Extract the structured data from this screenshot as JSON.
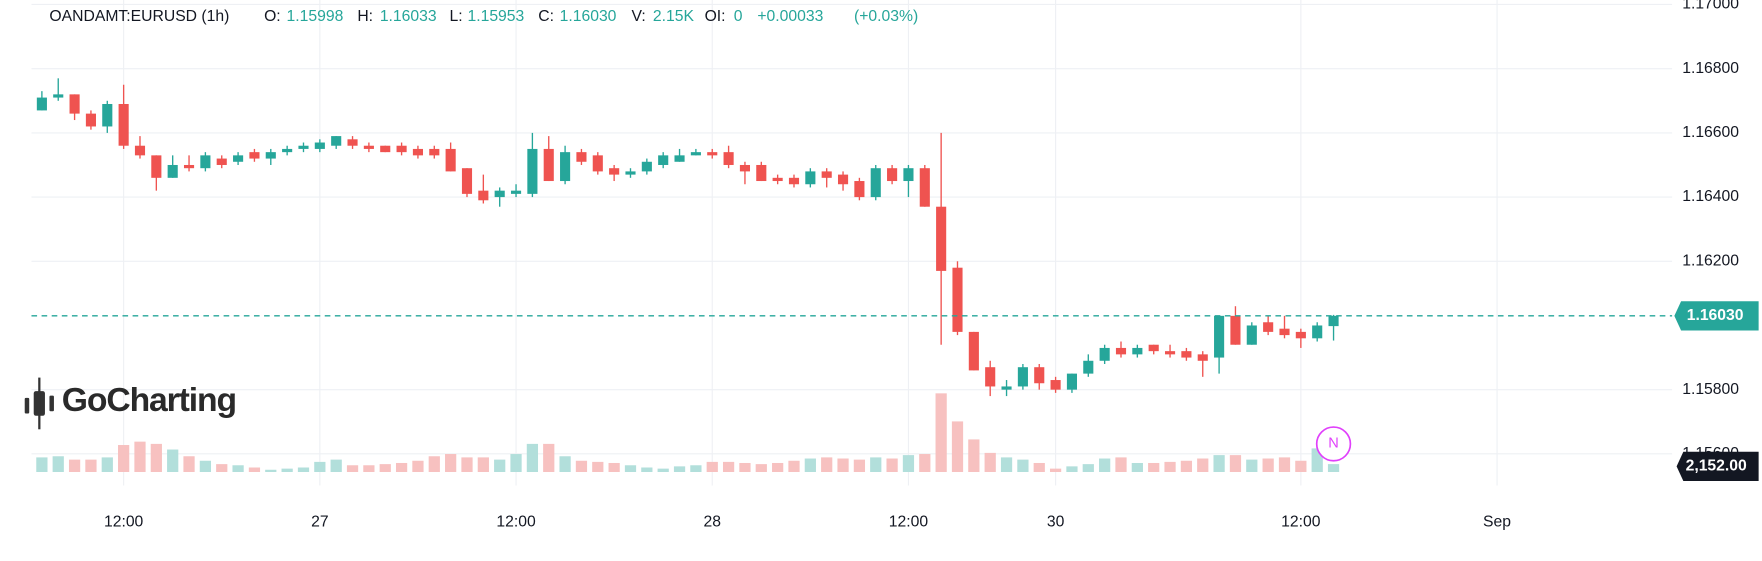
{
  "chart_data": {
    "type": "candlestick",
    "legend": {
      "symbol": "OANDAMT:EURUSD (1h)",
      "field_labels": [
        "O:",
        "H:",
        "L:",
        "C:",
        "V:",
        "OI:"
      ],
      "ohlc_values": [
        "1.15998",
        "1.16033",
        "1.15953",
        "1.16030"
      ],
      "volume": "2.15K",
      "open_interest": 0,
      "change": "+0.00033",
      "change_pct": "(+0.03%)"
    },
    "watermark": "GoCharting",
    "event_marker": "N",
    "price_badge_label": "1.16030",
    "volume_badge_label": "2,152.00",
    "up_color": "#26a69a",
    "down_color": "#ef5350",
    "volume_up_color": "#b2dfdb",
    "volume_down_color": "#f7c1c0",
    "grid": true,
    "categories": [
      null,
      null,
      null,
      null,
      null,
      "12:00",
      null,
      null,
      null,
      null,
      null,
      null,
      null,
      null,
      null,
      null,
      null,
      "27",
      null,
      null,
      null,
      null,
      null,
      null,
      null,
      null,
      null,
      null,
      null,
      "12:00",
      null,
      null,
      null,
      null,
      null,
      null,
      null,
      null,
      null,
      null,
      null,
      "28",
      null,
      null,
      null,
      null,
      null,
      null,
      null,
      null,
      null,
      null,
      null,
      "12:00",
      null,
      null,
      null,
      null,
      null,
      null,
      null,
      null,
      "30",
      null,
      null,
      null,
      null,
      null,
      null,
      null,
      null,
      null,
      null,
      null,
      null,
      null,
      null,
      "12:00",
      null,
      null,
      null,
      null,
      null,
      null,
      null,
      null,
      null,
      null,
      null,
      "Sep"
    ],
    "open": [
      1.1667,
      1.1671,
      1.1672,
      1.1666,
      1.1662,
      1.1669,
      1.1656,
      1.1653,
      1.1646,
      1.165,
      1.1649,
      1.1652,
      1.1651,
      1.1654,
      1.1652,
      1.1654,
      1.1655,
      1.1655,
      1.1656,
      1.1658,
      1.1656,
      1.1656,
      1.1656,
      1.1655,
      1.1655,
      1.1655,
      1.1649,
      1.1642,
      1.164,
      1.1641,
      1.1641,
      1.1655,
      1.1645,
      1.1654,
      1.1653,
      1.1649,
      1.1647,
      1.1648,
      1.165,
      1.1651,
      1.1653,
      1.1654,
      1.1654,
      1.165,
      1.165,
      1.1646,
      1.1646,
      1.1644,
      1.1648,
      1.1647,
      1.1645,
      1.164,
      1.1649,
      1.1645,
      1.1649,
      1.1637,
      1.1618,
      1.1598,
      1.1587,
      1.158,
      1.1581,
      1.1587,
      1.1583,
      1.158,
      1.1585,
      1.1589,
      1.1593,
      1.1591,
      1.1594,
      1.1592,
      1.1592,
      1.1591,
      1.159,
      1.1603,
      1.1594,
      1.1601,
      1.1599,
      1.1598,
      1.1596,
      1.15998,
      null,
      null,
      null,
      null,
      null,
      null,
      null,
      null,
      null,
      null
    ],
    "high": [
      1.1673,
      1.1677,
      1.1672,
      1.1667,
      1.167,
      1.1675,
      1.1659,
      1.1653,
      1.1653,
      1.1653,
      1.1654,
      1.1653,
      1.1654,
      1.1655,
      1.1655,
      1.1656,
      1.1657,
      1.1658,
      1.1659,
      1.1659,
      1.1657,
      1.1656,
      1.1657,
      1.1656,
      1.1656,
      1.1657,
      1.1649,
      1.1647,
      1.1643,
      1.1644,
      1.166,
      1.1659,
      1.1656,
      1.1655,
      1.1654,
      1.165,
      1.1649,
      1.1652,
      1.1654,
      1.1655,
      1.1655,
      1.1655,
      1.1656,
      1.1651,
      1.1651,
      1.1647,
      1.1647,
      1.1649,
      1.1649,
      1.1648,
      1.1646,
      1.165,
      1.165,
      1.165,
      1.165,
      1.166,
      1.162,
      1.1598,
      1.1589,
      1.1583,
      1.1588,
      1.1588,
      1.1584,
      1.1585,
      1.1591,
      1.1594,
      1.1595,
      1.1594,
      1.1594,
      1.1594,
      1.1593,
      1.1592,
      1.1603,
      1.1606,
      1.1601,
      1.1603,
      1.1603,
      1.1599,
      1.1601,
      1.16033,
      null,
      null,
      null,
      null,
      null,
      null,
      null,
      null,
      null,
      null
    ],
    "low": [
      1.1667,
      1.167,
      1.1664,
      1.1661,
      1.166,
      1.1655,
      1.1652,
      1.1642,
      1.1646,
      1.1648,
      1.1648,
      1.1649,
      1.165,
      1.1651,
      1.165,
      1.1653,
      1.1654,
      1.1654,
      1.1655,
      1.1655,
      1.1654,
      1.1654,
      1.1653,
      1.1652,
      1.1652,
      1.1648,
      1.164,
      1.1638,
      1.1637,
      1.164,
      1.164,
      1.1645,
      1.1644,
      1.165,
      1.1647,
      1.1645,
      1.1646,
      1.1647,
      1.1649,
      1.1651,
      1.1653,
      1.1652,
      1.1649,
      1.1644,
      1.1645,
      1.1644,
      1.1643,
      1.1643,
      1.1643,
      1.1642,
      1.1639,
      1.1639,
      1.1644,
      1.164,
      1.1637,
      1.1594,
      1.1597,
      1.1586,
      1.1578,
      1.1578,
      1.158,
      1.158,
      1.1579,
      1.1579,
      1.1584,
      1.1588,
      1.159,
      1.159,
      1.1591,
      1.159,
      1.1589,
      1.1584,
      1.1585,
      1.1594,
      1.1594,
      1.1597,
      1.1596,
      1.1593,
      1.1595,
      1.15953,
      null,
      null,
      null,
      null,
      null,
      null,
      null,
      null,
      null,
      null
    ],
    "close": [
      1.1671,
      1.1672,
      1.1666,
      1.1662,
      1.1669,
      1.1656,
      1.1653,
      1.1646,
      1.165,
      1.1649,
      1.1653,
      1.165,
      1.1653,
      1.1652,
      1.1654,
      1.1655,
      1.1656,
      1.1657,
      1.1659,
      1.1656,
      1.1655,
      1.1654,
      1.1654,
      1.1653,
      1.1653,
      1.1648,
      1.1641,
      1.1639,
      1.1642,
      1.1642,
      1.1655,
      1.1645,
      1.1654,
      1.1651,
      1.1648,
      1.1647,
      1.1648,
      1.1651,
      1.1653,
      1.1653,
      1.1654,
      1.1653,
      1.165,
      1.1648,
      1.1645,
      1.1645,
      1.1644,
      1.1648,
      1.1646,
      1.1644,
      1.164,
      1.1649,
      1.1645,
      1.1649,
      1.1637,
      1.1617,
      1.1598,
      1.1586,
      1.1581,
      1.1581,
      1.1587,
      1.1582,
      1.158,
      1.1585,
      1.1589,
      1.1593,
      1.1591,
      1.1593,
      1.1592,
      1.1591,
      1.159,
      1.1589,
      1.1603,
      1.1594,
      1.16,
      1.1598,
      1.1597,
      1.1596,
      1.16,
      1.1603,
      null,
      null,
      null,
      null,
      null,
      null,
      null,
      null,
      null,
      null
    ],
    "volumes": [
      3990,
      4300,
      3380,
      3380,
      3990,
      7370,
      8290,
      7680,
      6140,
      4300,
      3070,
      2150,
      1840,
      1230,
      610,
      920,
      1230,
      2760,
      3380,
      1840,
      1840,
      2150,
      2460,
      3070,
      4300,
      4910,
      3990,
      3990,
      3380,
      4910,
      7680,
      7680,
      4300,
      3070,
      2760,
      2460,
      1840,
      1230,
      920,
      1540,
      1840,
      2760,
      2760,
      2460,
      2150,
      2460,
      3070,
      3680,
      3990,
      3680,
      3380,
      3990,
      3680,
      4610,
      4910,
      21490,
      13820,
      8900,
      5220,
      3990,
      3380,
      2460,
      920,
      1540,
      2150,
      3680,
      3990,
      2460,
      2460,
      2760,
      3070,
      3680,
      4610,
      4610,
      3380,
      3680,
      3990,
      3070,
      6450,
      2152,
      null,
      null,
      null,
      null,
      null,
      null,
      null,
      null,
      null,
      null
    ],
    "ylim": [
      1.15526,
      1.17014
    ],
    "yticks": [
      {
        "value": 1.156,
        "label": "1.15600"
      },
      {
        "value": 1.158,
        "label": "1.15800"
      },
      {
        "value": 1.162,
        "label": "1.16200"
      },
      {
        "value": 1.164,
        "label": "1.16400"
      },
      {
        "value": 1.166,
        "label": "1.16600"
      },
      {
        "value": 1.168,
        "label": "1.16800"
      },
      {
        "value": 1.17,
        "label": "1.17000"
      }
    ]
  }
}
